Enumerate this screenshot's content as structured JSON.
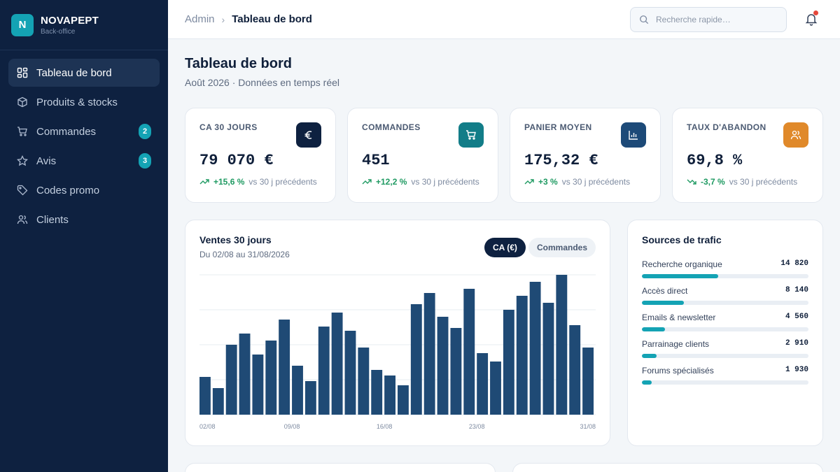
{
  "brand": {
    "logo_letter": "N",
    "name": "NOVAPEPT",
    "subtitle": "Back-office"
  },
  "sidebar": {
    "items": [
      {
        "label": "Tableau de bord",
        "icon": "dashboard-icon",
        "active": true
      },
      {
        "label": "Produits & stocks",
        "icon": "box-icon"
      },
      {
        "label": "Commandes",
        "icon": "cart-icon",
        "badge": "2"
      },
      {
        "label": "Avis",
        "icon": "star-icon",
        "badge": "3"
      },
      {
        "label": "Codes promo",
        "icon": "tag-icon"
      },
      {
        "label": "Clients",
        "icon": "users-icon"
      }
    ]
  },
  "topbar": {
    "breadcrumb_root": "Admin",
    "breadcrumb_current": "Tableau de bord",
    "search_placeholder": "Recherche rapide…",
    "notification_icon": "bell-icon"
  },
  "page": {
    "title": "Tableau de bord",
    "subtitle": "Août 2026 · Données en temps réel"
  },
  "kpis": [
    {
      "label": "CA 30 JOURS",
      "value": "79 070 €",
      "delta": "+15,6 %",
      "note": "vs 30 j précédents",
      "icon": "euro-icon",
      "icon_color": "#0e2140",
      "trend": "up"
    },
    {
      "label": "COMMANDES",
      "value": "451",
      "delta": "+12,2 %",
      "note": "vs 30 j précédents",
      "icon": "cart-icon",
      "icon_color": "#127d88",
      "trend": "up"
    },
    {
      "label": "PANIER MOYEN",
      "value": "175,32 €",
      "delta": "+3 %",
      "note": "vs 30 j précédents",
      "icon": "bar-chart-icon",
      "icon_color": "#1d4a78",
      "trend": "up"
    },
    {
      "label": "TAUX D'ABANDON",
      "value": "69,8 %",
      "delta": "-3,7 %",
      "note": "vs 30 j précédents",
      "icon": "users-icon",
      "icon_color": "#e0892a",
      "trend": "down"
    }
  ],
  "sales_card": {
    "title": "Ventes 30 jours",
    "subtitle": "Du 02/08 au 31/08/2026",
    "toggle_active": "CA (€)",
    "toggle_inactive": "Commandes"
  },
  "chart_data": {
    "type": "bar",
    "title": "Ventes 30 jours",
    "xlabel": "",
    "ylabel": "",
    "ylim": [
      0,
      100
    ],
    "grid": true,
    "bar_color": "#1f4a75",
    "categories": [
      "02/08",
      "03/08",
      "04/08",
      "05/08",
      "06/08",
      "07/08",
      "08/08",
      "09/08",
      "10/08",
      "11/08",
      "12/08",
      "13/08",
      "14/08",
      "15/08",
      "16/08",
      "17/08",
      "18/08",
      "19/08",
      "20/08",
      "21/08",
      "22/08",
      "23/08",
      "24/08",
      "25/08",
      "26/08",
      "27/08",
      "28/08",
      "29/08",
      "30/08",
      "31/08"
    ],
    "tick_labels": [
      "02/08",
      "09/08",
      "16/08",
      "23/08",
      "31/08"
    ],
    "values": [
      27,
      19,
      50,
      58,
      43,
      53,
      68,
      35,
      24,
      63,
      73,
      60,
      48,
      32,
      28,
      21,
      79,
      87,
      70,
      62,
      90,
      44,
      38,
      75,
      85,
      95,
      80,
      100,
      64,
      48
    ]
  },
  "traffic": {
    "title": "Sources de trafic",
    "sources": [
      {
        "name": "Recherche organique",
        "value": "14 820",
        "share": 0.46
      },
      {
        "name": "Accès direct",
        "value": "8 140",
        "share": 0.25
      },
      {
        "name": "Emails & newsletter",
        "value": "4 560",
        "share": 0.14
      },
      {
        "name": "Parrainage clients",
        "value": "2 910",
        "share": 0.09
      },
      {
        "name": "Forums spécialisés",
        "value": "1 930",
        "share": 0.06
      }
    ]
  },
  "colors": {
    "accent": "#14a3b4",
    "sidebar": "#0e2140",
    "positive": "#1f9a62",
    "notification": "#e5483c"
  }
}
